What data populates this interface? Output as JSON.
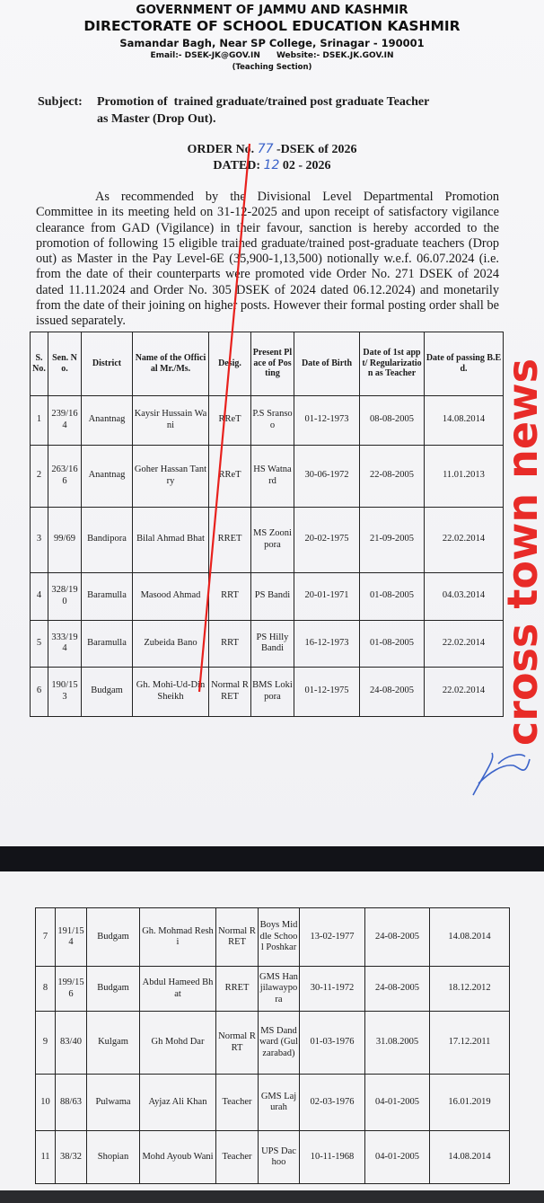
{
  "header": {
    "line1": "GOVERNMENT OF JAMMU AND KASHMIR",
    "line2": "DIRECTORATE OF SCHOOL EDUCATION KASHMIR",
    "address": "Samandar Bagh, Near SP College, Srinagar - 190001",
    "email": "Email:- DSEK-JK@GOV.IN",
    "website": "Website:- DSEK.JK.GOV.IN",
    "section": "(Teaching Section)"
  },
  "subject": {
    "label": "Subject:",
    "line1": "Promotion of  trained graduate/trained post graduate Teacher",
    "line2": "as Master (Drop Out)."
  },
  "order": {
    "prefix": "ORDER No.",
    "number": "77",
    "suffix": "-DSEK of 2026",
    "dated_label": "DATED:",
    "dated_day": "12",
    "dated_rest": "02 - 2026"
  },
  "body": "As recommended by the Divisional Level Departmental Promotion Committee in its meeting held on 31-12-2025 and upon receipt of satisfactory vigilance clearance from GAD (Vigilance) in their favour, sanction is hereby accorded to the promotion of following 15 eligible trained graduate/trained post-graduate teachers (Drop out) as Master in the Pay Level-6E (35,900-1,13,500) notionally w.e.f. 06.07.2024 (i.e. from the date of their counterparts were promoted vide Order No. 271 DSEK of 2024 dated 11.11.2024 and Order No. 305 DSEK of 2024 dated 06.12.2024) and monetarily from the date of their joining on higher posts. However their formal posting order shall be issued separately.",
  "table": {
    "columns": [
      "S. No.",
      "Sen. No.",
      "District",
      "Name of the Official Mr./Ms.",
      "Desig.",
      "Present Place of Posting",
      "Date of Birth",
      "Date of 1st appt/ Regularization as Teacher",
      "Date of passing B.Ed."
    ],
    "rows_page1": [
      [
        "1",
        "239/164",
        "Anantnag",
        "Kaysir Hussain Wani",
        "RReT",
        "P.S Sransoo",
        "01-12-1973",
        "08-08-2005",
        "14.08.2014"
      ],
      [
        "2",
        "263/166",
        "Anantnag",
        "Goher Hassan Tantry",
        "RReT",
        "HS Watnard",
        "30-06-1972",
        "22-08-2005",
        "11.01.2013"
      ],
      [
        "3",
        "99/69",
        "Bandipora",
        "Bilal Ahmad Bhat",
        "RRET",
        "MS Zoonipora",
        "20-02-1975",
        "21-09-2005",
        "22.02.2014"
      ],
      [
        "4",
        "328/190",
        "Baramulla",
        "Masood Ahmad",
        "RRT",
        "PS Bandi",
        "20-01-1971",
        "01-08-2005",
        "04.03.2014"
      ],
      [
        "5",
        "333/194",
        "Baramulla",
        "Zubeida Bano",
        "RRT",
        "PS Hilly Bandi",
        "16-12-1973",
        "01-08-2005",
        "22.02.2014"
      ],
      [
        "6",
        "190/153",
        "Budgam",
        "Gh. Mohi-Ud-Din Sheikh",
        "Normal RRET",
        "BMS Lokipora",
        "01-12-1975",
        "24-08-2005",
        "22.02.2014"
      ]
    ],
    "rows_page2": [
      [
        "7",
        "191/154",
        "Budgam",
        "Gh. Mohmad Reshi",
        "Normal RRET",
        "Boys Middle School Poshkar",
        "13-02-1977",
        "24-08-2005",
        "14.08.2014"
      ],
      [
        "8",
        "199/156",
        "Budgam",
        "Abdul Hameed Bhat",
        "RRET",
        "GMS Hanjilawaypora",
        "30-11-1972",
        "24-08-2005",
        "18.12.2012"
      ],
      [
        "9",
        "83/40",
        "Kulgam",
        "Gh Mohd Dar",
        "Normal RRT",
        "MS Dandward (Gulzarabad)",
        "01-03-1976",
        "31.08.2005",
        "17.12.2011"
      ],
      [
        "10",
        "88/63",
        "Pulwama",
        "Ayjaz Ali Khan",
        "Teacher",
        "GMS Lajurah",
        "02-03-1976",
        "04-01-2005",
        "16.01.2019"
      ],
      [
        "11",
        "38/32",
        "Shopian",
        "Mohd Ayoub Wani",
        "Teacher",
        "UPS Dachoo",
        "10-11-1968",
        "04-01-2005",
        "14.08.2014"
      ]
    ]
  },
  "watermark": "cross town news",
  "colors": {
    "watermark": "#e8211d",
    "ink_handwriting": "#3b63c9",
    "band": "#121318"
  }
}
